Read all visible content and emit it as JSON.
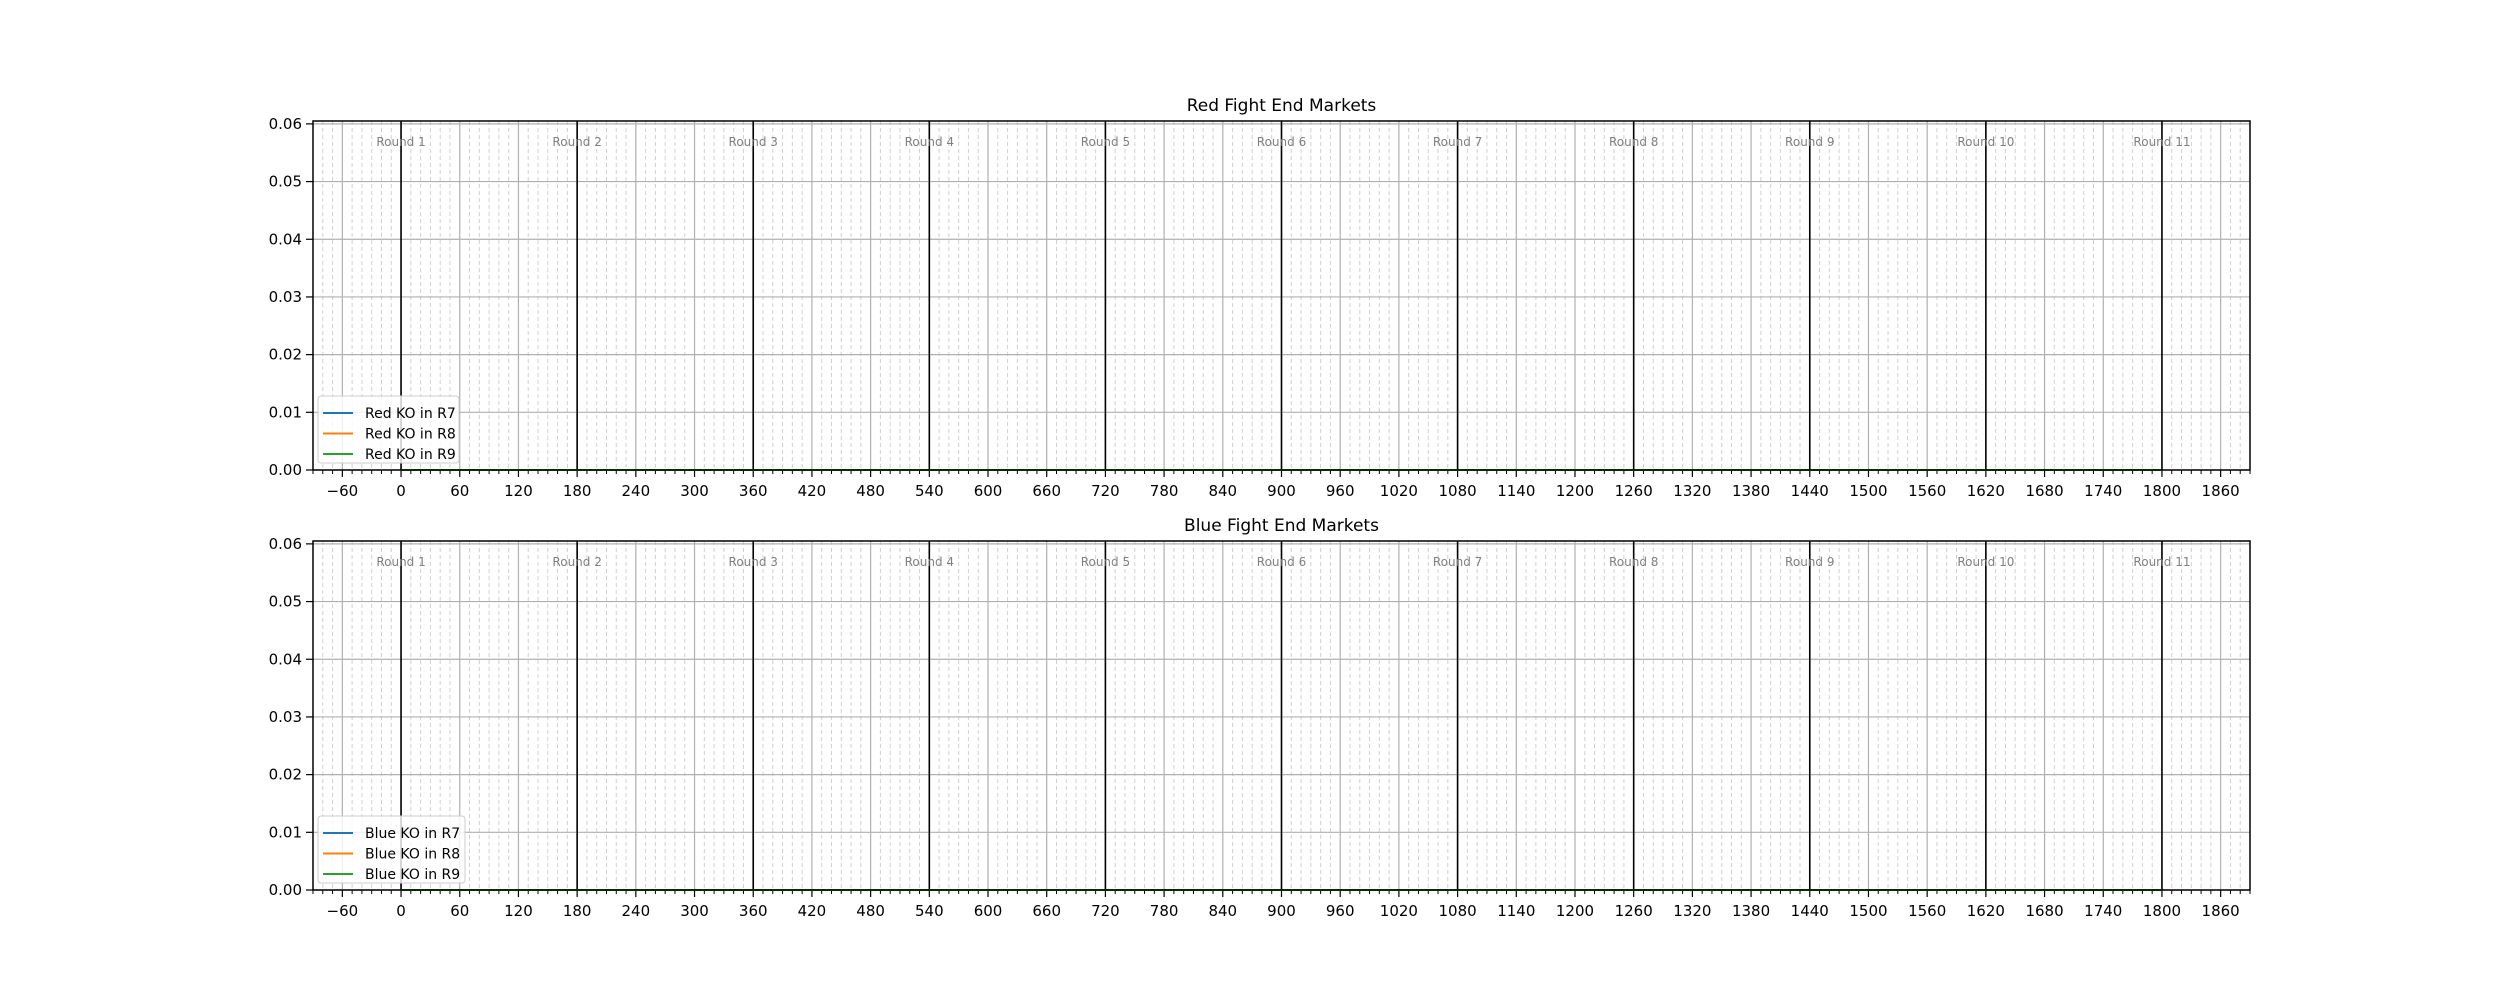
{
  "chart_data": [
    {
      "type": "line",
      "title": "Red Fight End Markets",
      "xlim": [
        -90,
        1890
      ],
      "ylim": [
        0,
        0.0605
      ],
      "xticks": [
        -60,
        0,
        60,
        120,
        180,
        240,
        300,
        360,
        420,
        480,
        540,
        600,
        660,
        720,
        780,
        840,
        900,
        960,
        1020,
        1080,
        1140,
        1200,
        1260,
        1320,
        1380,
        1440,
        1500,
        1560,
        1620,
        1680,
        1740,
        1800,
        1860
      ],
      "xtick_labels": [
        "−60",
        "0",
        "60",
        "120",
        "180",
        "240",
        "300",
        "360",
        "420",
        "480",
        "540",
        "600",
        "660",
        "720",
        "780",
        "840",
        "900",
        "960",
        "1020",
        "1080",
        "1140",
        "1200",
        "1260",
        "1320",
        "1380",
        "1440",
        "1500",
        "1560",
        "1620",
        "1680",
        "1740",
        "1800",
        "1860"
      ],
      "yticks": [
        0,
        0.01,
        0.02,
        0.03,
        0.04,
        0.05,
        0.06
      ],
      "ytick_labels": [
        "0.00",
        "0.01",
        "0.02",
        "0.03",
        "0.04",
        "0.05",
        "0.06"
      ],
      "minor_x_step": 10,
      "grid": true,
      "round_markers": {
        "x": [
          0,
          180,
          360,
          540,
          720,
          900,
          1080,
          1260,
          1440,
          1620,
          1800
        ],
        "labels": [
          "Round 1",
          "Round 2",
          "Round 3",
          "Round 4",
          "Round 5",
          "Round 6",
          "Round 7",
          "Round 8",
          "Round 9",
          "Round 10",
          "Round 11"
        ]
      },
      "legend_position": "lower-left",
      "series": [
        {
          "name": "Red KO in R7",
          "color": "#1f77b4",
          "x": [
            0,
            1800
          ],
          "y": [
            0,
            0
          ]
        },
        {
          "name": "Red KO in R8",
          "color": "#ff7f0e",
          "x": [
            0,
            1800
          ],
          "y": [
            0,
            0
          ]
        },
        {
          "name": "Red KO in R9",
          "color": "#2ca02c",
          "x": [
            0,
            1800
          ],
          "y": [
            0,
            0
          ]
        }
      ]
    },
    {
      "type": "line",
      "title": "Blue Fight End Markets",
      "xlim": [
        -90,
        1890
      ],
      "ylim": [
        0,
        0.0605
      ],
      "xticks": [
        -60,
        0,
        60,
        120,
        180,
        240,
        300,
        360,
        420,
        480,
        540,
        600,
        660,
        720,
        780,
        840,
        900,
        960,
        1020,
        1080,
        1140,
        1200,
        1260,
        1320,
        1380,
        1440,
        1500,
        1560,
        1620,
        1680,
        1740,
        1800,
        1860
      ],
      "xtick_labels": [
        "−60",
        "0",
        "60",
        "120",
        "180",
        "240",
        "300",
        "360",
        "420",
        "480",
        "540",
        "600",
        "660",
        "720",
        "780",
        "840",
        "900",
        "960",
        "1020",
        "1080",
        "1140",
        "1200",
        "1260",
        "1320",
        "1380",
        "1440",
        "1500",
        "1560",
        "1620",
        "1680",
        "1740",
        "1800",
        "1860"
      ],
      "yticks": [
        0,
        0.01,
        0.02,
        0.03,
        0.04,
        0.05,
        0.06
      ],
      "ytick_labels": [
        "0.00",
        "0.01",
        "0.02",
        "0.03",
        "0.04",
        "0.05",
        "0.06"
      ],
      "minor_x_step": 10,
      "grid": true,
      "round_markers": {
        "x": [
          0,
          180,
          360,
          540,
          720,
          900,
          1080,
          1260,
          1440,
          1620,
          1800
        ],
        "labels": [
          "Round 1",
          "Round 2",
          "Round 3",
          "Round 4",
          "Round 5",
          "Round 6",
          "Round 7",
          "Round 8",
          "Round 9",
          "Round 10",
          "Round 11"
        ]
      },
      "legend_position": "lower-left",
      "series": [
        {
          "name": "Blue KO in R7",
          "color": "#1f77b4",
          "x": [
            0,
            1800
          ],
          "y": [
            0,
            0
          ]
        },
        {
          "name": "Blue KO in R8",
          "color": "#ff7f0e",
          "x": [
            0,
            1800
          ],
          "y": [
            0,
            0
          ]
        },
        {
          "name": "Blue KO in R9",
          "color": "#2ca02c",
          "x": [
            0,
            1800
          ],
          "y": [
            0,
            0
          ]
        }
      ]
    }
  ]
}
